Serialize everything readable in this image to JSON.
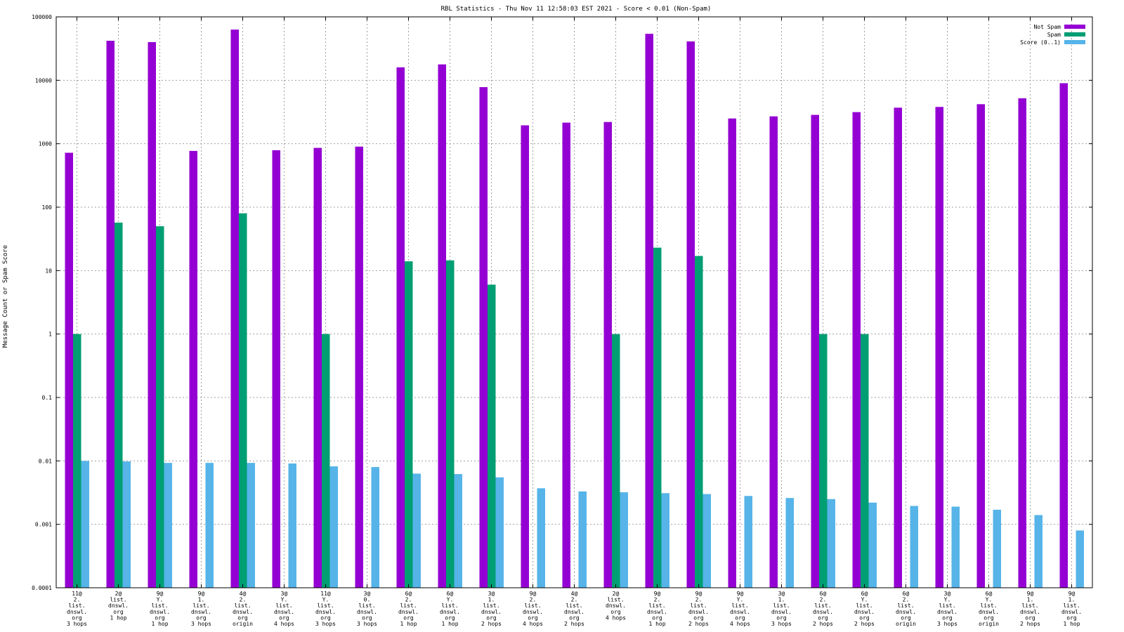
{
  "chart_data": {
    "type": "bar",
    "title": "RBL Statistics - Thu Nov 11 12:58:03 EST 2021 - Score < 0.01 (Non-Spam)",
    "xlabel": "",
    "ylabel": "Message Count or Spam Score",
    "yscale": "log",
    "ylim": [
      0.0001,
      100000
    ],
    "yticks": [
      "0.0001",
      "0.001",
      "0.01",
      "0.1",
      "1",
      "10",
      "100",
      "1000",
      "10000",
      "100000"
    ],
    "grid": true,
    "legend_position": "top-right",
    "categories": [
      [
        "11@",
        "2.",
        "list.",
        "dnswl.",
        "org",
        "3 hops"
      ],
      [
        "2@",
        "list.",
        "dnswl.",
        "org",
        "1 hop"
      ],
      [
        "9@",
        "Y.",
        "list.",
        "dnswl.",
        "org",
        "1 hop"
      ],
      [
        "9@",
        "1.",
        "list.",
        "dnswl.",
        "org",
        "3 hops"
      ],
      [
        "4@",
        "2.",
        "list.",
        "dnswl.",
        "org",
        "origin"
      ],
      [
        "3@",
        "Y.",
        "list.",
        "dnswl.",
        "org",
        "4 hops"
      ],
      [
        "11@",
        "Y.",
        "list.",
        "dnswl.",
        "org",
        "3 hops"
      ],
      [
        "3@",
        "0.",
        "list.",
        "dnswl.",
        "org",
        "3 hops"
      ],
      [
        "6@",
        "2.",
        "list.",
        "dnswl.",
        "org",
        "1 hop"
      ],
      [
        "6@",
        "Y.",
        "list.",
        "dnswl.",
        "org",
        "1 hop"
      ],
      [
        "3@",
        "1.",
        "list.",
        "dnswl.",
        "org",
        "2 hops"
      ],
      [
        "9@",
        "2.",
        "list.",
        "dnswl.",
        "org",
        "4 hops"
      ],
      [
        "4@",
        "2.",
        "list.",
        "dnswl.",
        "org",
        "2 hops"
      ],
      [
        "2@",
        "list.",
        "dnswl.",
        "org",
        "4 hops"
      ],
      [
        "9@",
        "2.",
        "list.",
        "dnswl.",
        "org",
        "1 hop"
      ],
      [
        "9@",
        "2.",
        "list.",
        "dnswl.",
        "org",
        "2 hops"
      ],
      [
        "9@",
        "Y.",
        "list.",
        "dnswl.",
        "org",
        "4 hops"
      ],
      [
        "3@",
        "1.",
        "list.",
        "dnswl.",
        "org",
        "3 hops"
      ],
      [
        "6@",
        "2.",
        "list.",
        "dnswl.",
        "org",
        "2 hops"
      ],
      [
        "6@",
        "Y.",
        "list.",
        "dnswl.",
        "org",
        "2 hops"
      ],
      [
        "6@",
        "2.",
        "list.",
        "dnswl.",
        "org",
        "origin"
      ],
      [
        "3@",
        "Y.",
        "list.",
        "dnswl.",
        "org",
        "3 hops"
      ],
      [
        "6@",
        "Y.",
        "list.",
        "dnswl.",
        "org",
        "origin"
      ],
      [
        "9@",
        "1.",
        "list.",
        "dnswl.",
        "org",
        "2 hops"
      ],
      [
        "9@",
        "1.",
        "list.",
        "dnswl.",
        "org",
        "1 hop"
      ]
    ],
    "series": [
      {
        "name": "Not Spam",
        "color": "#9400d3",
        "values": [
          720,
          42000,
          40000,
          770,
          63000,
          790,
          860,
          900,
          16000,
          17800,
          7800,
          1950,
          2150,
          2200,
          54000,
          41000,
          2500,
          2700,
          2850,
          3150,
          3700,
          3800,
          4200,
          5200,
          9000
        ]
      },
      {
        "name": "Spam",
        "color": "#009e73",
        "values": [
          1,
          57,
          50,
          null,
          80,
          null,
          1,
          null,
          14,
          14.5,
          6,
          null,
          null,
          1,
          23,
          17,
          null,
          null,
          1,
          1,
          null,
          null,
          null,
          null,
          null
        ]
      },
      {
        "name": "Score (0..1)",
        "color": "#56b4e9",
        "values": [
          0.01,
          0.0098,
          0.0093,
          0.0093,
          0.0093,
          0.0091,
          0.0082,
          0.008,
          0.0063,
          0.0062,
          0.0055,
          0.0037,
          0.0033,
          0.0032,
          0.0031,
          0.003,
          0.0028,
          0.0026,
          0.0025,
          0.0022,
          0.00195,
          0.0019,
          0.0017,
          0.0014,
          0.0008
        ]
      }
    ]
  }
}
